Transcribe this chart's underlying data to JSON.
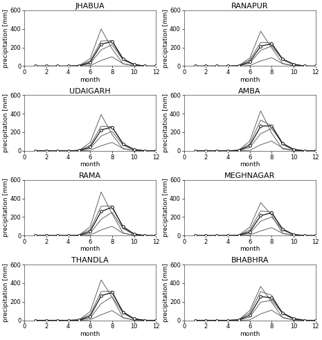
{
  "stations": [
    "JHABUA",
    "RANAPUR",
    "UDAIGARH",
    "AMBA",
    "RAMA",
    "MEGHNAGAR",
    "THANDLA",
    "BHABHRA"
  ],
  "months": [
    1,
    2,
    3,
    4,
    5,
    6,
    7,
    8,
    9,
    10,
    11,
    12
  ],
  "curves": {
    "JHABUA": [
      [
        0,
        0,
        0,
        0,
        0,
        5,
        60,
        100,
        25,
        3,
        0,
        0
      ],
      [
        0,
        0,
        0,
        0,
        2,
        25,
        175,
        230,
        65,
        12,
        0,
        0
      ],
      [
        0,
        0,
        0,
        0,
        3,
        40,
        235,
        265,
        75,
        18,
        0,
        0
      ],
      [
        0,
        0,
        0,
        0,
        4,
        55,
        270,
        275,
        80,
        15,
        0,
        0
      ],
      [
        0,
        0,
        0,
        0,
        6,
        80,
        400,
        185,
        25,
        4,
        0,
        0
      ]
    ],
    "RANAPUR": [
      [
        0,
        0,
        0,
        0,
        0,
        5,
        55,
        90,
        25,
        3,
        0,
        0
      ],
      [
        0,
        0,
        0,
        0,
        2,
        30,
        170,
        215,
        70,
        18,
        0,
        0
      ],
      [
        0,
        0,
        0,
        0,
        3,
        45,
        215,
        240,
        75,
        20,
        0,
        0
      ],
      [
        0,
        0,
        0,
        0,
        4,
        65,
        255,
        250,
        70,
        15,
        0,
        0
      ],
      [
        0,
        0,
        0,
        0,
        6,
        85,
        375,
        195,
        28,
        5,
        0,
        0
      ]
    ],
    "UDAIGARH": [
      [
        0,
        0,
        0,
        0,
        0,
        5,
        55,
        90,
        25,
        3,
        0,
        0
      ],
      [
        0,
        0,
        0,
        0,
        2,
        25,
        160,
        210,
        60,
        10,
        0,
        0
      ],
      [
        0,
        0,
        0,
        0,
        3,
        40,
        225,
        255,
        75,
        15,
        0,
        0
      ],
      [
        0,
        0,
        0,
        0,
        4,
        60,
        265,
        260,
        75,
        12,
        0,
        0
      ],
      [
        0,
        0,
        0,
        0,
        6,
        90,
        390,
        175,
        22,
        4,
        0,
        0
      ]
    ],
    "AMBA": [
      [
        0,
        0,
        0,
        0,
        0,
        5,
        65,
        105,
        30,
        4,
        0,
        0
      ],
      [
        0,
        0,
        0,
        0,
        3,
        35,
        185,
        240,
        80,
        18,
        0,
        0
      ],
      [
        0,
        0,
        0,
        0,
        4,
        55,
        265,
        270,
        80,
        15,
        0,
        0
      ],
      [
        0,
        0,
        0,
        0,
        5,
        75,
        330,
        270,
        65,
        10,
        0,
        0
      ],
      [
        0,
        0,
        0,
        0,
        8,
        105,
        430,
        190,
        20,
        4,
        0,
        0
      ]
    ],
    "RAMA": [
      [
        0,
        0,
        0,
        0,
        0,
        5,
        60,
        100,
        25,
        3,
        0,
        0
      ],
      [
        0,
        0,
        0,
        0,
        2,
        25,
        175,
        250,
        75,
        12,
        0,
        0
      ],
      [
        0,
        0,
        0,
        0,
        3,
        45,
        260,
        305,
        95,
        18,
        0,
        0
      ],
      [
        0,
        0,
        0,
        0,
        5,
        65,
        315,
        320,
        85,
        14,
        0,
        0
      ],
      [
        0,
        0,
        0,
        0,
        6,
        95,
        470,
        235,
        28,
        4,
        0,
        0
      ]
    ],
    "MEGHNAGAR": [
      [
        0,
        0,
        0,
        0,
        0,
        5,
        50,
        85,
        25,
        3,
        0,
        0
      ],
      [
        0,
        0,
        0,
        0,
        2,
        25,
        155,
        200,
        60,
        10,
        0,
        0
      ],
      [
        0,
        0,
        0,
        0,
        3,
        40,
        215,
        245,
        70,
        12,
        0,
        0
      ],
      [
        0,
        0,
        0,
        0,
        4,
        60,
        265,
        255,
        65,
        10,
        0,
        0
      ],
      [
        0,
        0,
        0,
        0,
        6,
        90,
        355,
        220,
        22,
        3,
        0,
        0
      ]
    ],
    "THANDLA": [
      [
        0,
        0,
        0,
        0,
        0,
        5,
        60,
        105,
        28,
        3,
        0,
        0
      ],
      [
        0,
        0,
        0,
        0,
        2,
        25,
        180,
        255,
        78,
        12,
        0,
        0
      ],
      [
        0,
        0,
        0,
        0,
        3,
        45,
        265,
        300,
        90,
        18,
        0,
        0
      ],
      [
        0,
        0,
        0,
        0,
        5,
        65,
        310,
        315,
        82,
        14,
        0,
        0
      ],
      [
        0,
        0,
        0,
        0,
        6,
        95,
        435,
        250,
        28,
        4,
        0,
        0
      ]
    ],
    "BHABHRA": [
      [
        0,
        0,
        0,
        0,
        0,
        5,
        70,
        110,
        32,
        4,
        0,
        0
      ],
      [
        0,
        0,
        0,
        0,
        3,
        35,
        195,
        215,
        72,
        18,
        0,
        0
      ],
      [
        0,
        0,
        0,
        0,
        4,
        55,
        255,
        245,
        80,
        20,
        0,
        0
      ],
      [
        0,
        0,
        0,
        0,
        5,
        80,
        310,
        270,
        72,
        12,
        0,
        0
      ],
      [
        0,
        0,
        0,
        0,
        7,
        105,
        365,
        195,
        28,
        5,
        0,
        0
      ]
    ]
  },
  "observed_curve_index": 2,
  "ylim": [
    0,
    600
  ],
  "yticks": [
    0,
    200,
    400,
    600
  ],
  "xlim": [
    0,
    12
  ],
  "xticks": [
    0,
    2,
    4,
    6,
    8,
    10,
    12
  ],
  "xlabel": "month",
  "ylabel": "precipitation [mm]",
  "background_color": "#ffffff",
  "title_fontsize": 8,
  "label_fontsize": 6.5,
  "tick_fontsize": 6
}
